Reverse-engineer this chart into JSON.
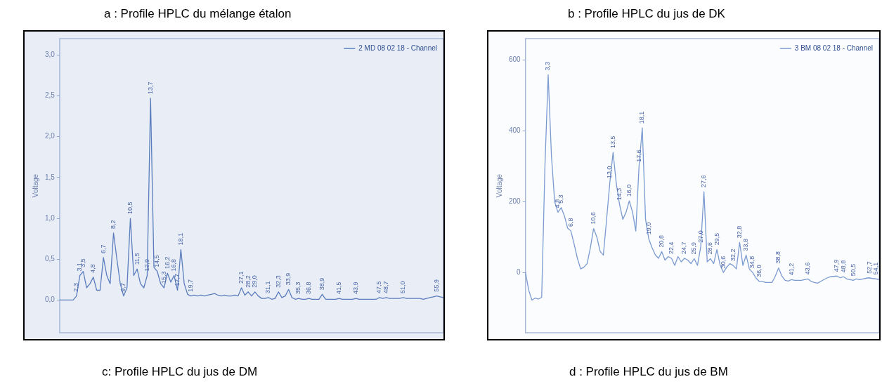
{
  "chart_data": [
    {
      "type": "line",
      "title": "a : Profile HPLC du mélange étalon",
      "ylabel": "Voltage",
      "legend": "top right",
      "marker": "none",
      "grid": false,
      "tick_labels": "y",
      "categories": [
        null,
        null,
        null,
        null,
        null,
        null,
        null,
        null,
        null,
        null,
        null,
        null,
        null,
        null,
        null,
        null,
        null,
        null,
        null,
        null,
        null,
        null,
        null,
        null,
        null,
        null,
        null,
        null,
        null,
        null,
        null,
        null,
        null,
        null,
        null,
        null,
        null,
        null,
        null,
        null,
        null,
        null,
        null,
        null,
        null,
        null,
        null,
        null,
        null,
        null,
        null,
        null,
        null,
        null,
        null,
        null,
        null,
        null,
        null,
        null,
        null,
        null,
        null,
        null,
        null,
        null,
        null,
        null,
        null,
        null,
        null,
        null,
        null,
        null,
        null,
        null,
        null,
        null,
        null,
        null,
        null,
        null,
        null,
        null,
        null,
        null,
        null,
        null,
        null,
        null,
        null,
        null,
        null,
        null,
        null,
        null,
        null,
        null,
        null,
        null,
        null,
        null,
        null,
        null,
        null,
        null,
        null,
        null,
        null,
        null,
        null,
        null,
        null,
        null,
        null
      ],
      "ylim": [
        -0.4,
        3.2
      ],
      "yticks": [
        {
          "value": 0,
          "label": "0,0"
        },
        {
          "value": 0.5,
          "label": "0,5"
        },
        {
          "value": 1,
          "label": "1,0"
        },
        {
          "value": 1.5,
          "label": "1,5"
        },
        {
          "value": 2,
          "label": "2,0"
        },
        {
          "value": 2.5,
          "label": "2,5"
        },
        {
          "value": 3,
          "label": "3,0"
        }
      ],
      "series": [
        {
          "name": "2 MD 08 02 18 - Channel",
          "color": "#5b7dbd",
          "values": [
            0,
            0,
            0,
            0,
            0,
            0.05,
            0.3,
            0.35,
            0.15,
            0.2,
            0.28,
            0.12,
            0.12,
            0.52,
            0.3,
            0.2,
            0.82,
            0.5,
            0.2,
            0.05,
            0.15,
            1.0,
            0.3,
            0.38,
            0.2,
            0.15,
            0.3,
            2.47,
            0.4,
            0.35,
            0.2,
            0.15,
            0.33,
            0.22,
            0.3,
            0.12,
            0.62,
            0.2,
            0.07,
            0.05,
            0.06,
            0.05,
            0.06,
            0.05,
            0.06,
            0.07,
            0.08,
            0.06,
            0.05,
            0.06,
            0.05,
            0.05,
            0.06,
            0.05,
            0.15,
            0.06,
            0.1,
            0.05,
            0.1,
            0.05,
            0.02,
            0.02,
            0.03,
            0.01,
            0.02,
            0.1,
            0.03,
            0.05,
            0.13,
            0.03,
            0.01,
            0.02,
            0.01,
            0.01,
            0.02,
            0.01,
            0.01,
            0.01,
            0.07,
            0.01,
            0.01,
            0.01,
            0.01,
            0.02,
            0.01,
            0.01,
            0.01,
            0.01,
            0.02,
            0.01,
            0.01,
            0.01,
            0.01,
            0.01,
            0.01,
            0.03,
            0.02,
            0.03,
            0.02,
            0.02,
            0.02,
            0.02,
            0.03,
            0.02,
            0.02,
            0.02,
            0.02,
            0.02,
            0.01,
            0.02,
            0.03,
            0.04,
            0.05,
            0.04,
            0.03
          ]
        }
      ],
      "annotations": [
        {
          "text": "2,3",
          "y": 0.05
        },
        {
          "text": "3,1",
          "y": 0.3
        },
        {
          "text": "3,5",
          "y": 0.35
        },
        {
          "text": "4,8",
          "y": 0.28
        },
        {
          "text": "6,7",
          "y": 0.52
        },
        {
          "text": "8,2",
          "y": 0.82
        },
        {
          "text": "9,7",
          "y": 0.05
        },
        {
          "text": "10,5",
          "y": 1.0
        },
        {
          "text": "11,5",
          "y": 0.38
        },
        {
          "text": "12,9",
          "y": 0.3
        },
        {
          "text": "13,7",
          "y": 2.47
        },
        {
          "text": "14,5",
          "y": 0.35
        },
        {
          "text": "15,3",
          "y": 0.15
        },
        {
          "text": "16,2",
          "y": 0.33
        },
        {
          "text": "16,8",
          "y": 0.3
        },
        {
          "text": "17,7",
          "y": 0.12
        },
        {
          "text": "18,1",
          "y": 0.62
        },
        {
          "text": "19,7",
          "y": 0.05
        },
        {
          "text": "27,1",
          "y": 0.15
        },
        {
          "text": "28,2",
          "y": 0.1
        },
        {
          "text": "29,0",
          "y": 0.1
        },
        {
          "text": "31,1",
          "y": 0.03
        },
        {
          "text": "32,3",
          "y": 0.1
        },
        {
          "text": "33,9",
          "y": 0.13
        },
        {
          "text": "35,3",
          "y": 0.02
        },
        {
          "text": "36,8",
          "y": 0.02
        },
        {
          "text": "38,9",
          "y": 0.07
        },
        {
          "text": "41,5",
          "y": 0.02
        },
        {
          "text": "43,9",
          "y": 0.02
        },
        {
          "text": "47,5",
          "y": 0.03
        },
        {
          "text": "48,7",
          "y": 0.03
        },
        {
          "text": "51,0",
          "y": 0.03
        },
        {
          "text": "55,9",
          "y": 0.05
        }
      ]
    },
    {
      "type": "line",
      "title": "b : Profile HPLC du jus de DK",
      "ylabel": "Voltage",
      "legend": "top right",
      "marker": "none",
      "grid": false,
      "tick_labels": "y",
      "categories": [
        null,
        null,
        null,
        null,
        null,
        null,
        null,
        null,
        null,
        null,
        null,
        null,
        null,
        null,
        null,
        null,
        null,
        null,
        null,
        null,
        null,
        null,
        null,
        null,
        null,
        null,
        null,
        null,
        null,
        null,
        null,
        null,
        null,
        null,
        null,
        null,
        null,
        null,
        null,
        null,
        null,
        null,
        null,
        null,
        null,
        null,
        null,
        null,
        null,
        null,
        null,
        null,
        null,
        null,
        null,
        null,
        null,
        null,
        null,
        null,
        null,
        null,
        null,
        null,
        null,
        null,
        null,
        null,
        null,
        null,
        null,
        null,
        null,
        null,
        null,
        null,
        null,
        null,
        null,
        null,
        null,
        null,
        null,
        null,
        null,
        null,
        null,
        null,
        null,
        null,
        null,
        null,
        null,
        null,
        null,
        null,
        null,
        null,
        null,
        null,
        null,
        null,
        null,
        null,
        null,
        null,
        null,
        null,
        null,
        null
      ],
      "ylim": [
        -170,
        660
      ],
      "yticks": [
        0,
        200,
        400,
        600
      ],
      "series": [
        {
          "name": "3 BM 08 02 18 - Channel",
          "color": "#7a9ad0",
          "values": [
            0,
            -50,
            -78,
            -72,
            -75,
            -70,
            300,
            558,
            330,
            200,
            170,
            183,
            160,
            125,
            117,
            80,
            40,
            10,
            15,
            25,
            70,
            124,
            100,
            60,
            49,
            150,
            254,
            339,
            250,
            192,
            150,
            170,
            202,
            170,
            117,
            300,
            408,
            150,
            95,
            70,
            50,
            40,
            59,
            35,
            45,
            40,
            20,
            45,
            30,
            40,
            35,
            25,
            39,
            20,
            72,
            228,
            30,
            39,
            25,
            65,
            20,
            0,
            15,
            25,
            20,
            10,
            85,
            20,
            49,
            10,
            0,
            -15,
            -25,
            -25,
            -28,
            -28,
            -28,
            -10,
            13,
            -10,
            -22,
            -24,
            -20,
            -22,
            -22,
            -22,
            -20,
            -18,
            -25,
            -28,
            -30,
            -25,
            -20,
            -15,
            -12,
            -11,
            -10,
            -15,
            -12,
            -18,
            -20,
            -22,
            -18,
            -20,
            -18,
            -16,
            -15,
            -17,
            -18,
            -20
          ]
        }
      ],
      "annotations": [
        {
          "text": "3,3",
          "y": 558
        },
        {
          "text": "4,8",
          "y": 170
        },
        {
          "text": "5,3",
          "y": 183
        },
        {
          "text": "6,8",
          "y": 117
        },
        {
          "text": "10,6",
          "y": 124
        },
        {
          "text": "13,0",
          "y": 254
        },
        {
          "text": "13,5",
          "y": 339
        },
        {
          "text": "14,3",
          "y": 192
        },
        {
          "text": "16,0",
          "y": 202
        },
        {
          "text": "17,6",
          "y": 300
        },
        {
          "text": "18,1",
          "y": 408
        },
        {
          "text": "19,0",
          "y": 95
        },
        {
          "text": "20,8",
          "y": 59
        },
        {
          "text": "22,4",
          "y": 40
        },
        {
          "text": "24,7",
          "y": 40
        },
        {
          "text": "25,9",
          "y": 39
        },
        {
          "text": "27,0",
          "y": 72
        },
        {
          "text": "27,6",
          "y": 228
        },
        {
          "text": "28,6",
          "y": 39
        },
        {
          "text": "29,5",
          "y": 65
        },
        {
          "text": "30,6",
          "y": 0
        },
        {
          "text": "32,2",
          "y": 20
        },
        {
          "text": "32,8",
          "y": 85
        },
        {
          "text": "33,8",
          "y": 49
        },
        {
          "text": "34,8",
          "y": 0
        },
        {
          "text": "36,0",
          "y": -25
        },
        {
          "text": "38,8",
          "y": 13
        },
        {
          "text": "41,2",
          "y": -20
        },
        {
          "text": "43,6",
          "y": -18
        },
        {
          "text": "47,9",
          "y": -10
        },
        {
          "text": "48,8",
          "y": -12
        },
        {
          "text": "50,5",
          "y": -22
        },
        {
          "text": "52,7",
          "y": -15
        },
        {
          "text": "54,1",
          "y": -18
        }
      ]
    },
    {
      "type": "other",
      "annotations": [
        "c: Profile HPLC du jus de DM",
        "d : Profile HPLC du jus de BM"
      ]
    }
  ]
}
